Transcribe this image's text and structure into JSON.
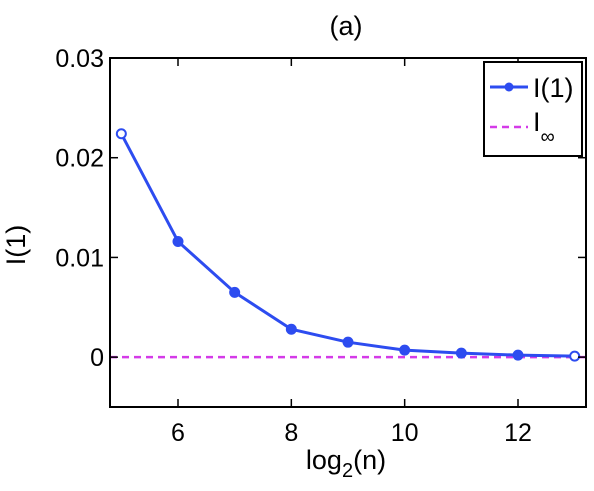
{
  "chart_data": {
    "type": "line",
    "title": "(a)",
    "xlabel": "log",
    "xlabel_sub": "2",
    "xlabel_tail": "(n)",
    "ylabel": "I(1)",
    "xlim": [
      4.8,
      13.2
    ],
    "ylim": [
      -0.005,
      0.03
    ],
    "xticks": [
      6,
      8,
      10,
      12
    ],
    "xtick_labels": [
      "6",
      "8",
      "10",
      "12"
    ],
    "yticks": [
      0,
      0.01,
      0.02,
      0.03
    ],
    "ytick_labels": [
      "0",
      "0.01",
      "0.02",
      "0.03"
    ],
    "grid": false,
    "legend_position": "top-right",
    "legend": {
      "series_label": "I(1)",
      "ref_label": "I",
      "ref_sub": "∞"
    },
    "colors": {
      "series": "#2d4cf0",
      "reference": "#d43be8"
    },
    "series": [
      {
        "x": [
          5,
          6,
          7,
          8,
          9,
          10,
          11,
          12,
          13
        ],
        "values": [
          0.0224,
          0.0116,
          0.0065,
          0.0028,
          0.0015,
          0.0007,
          0.0004,
          0.0002,
          0.0001
        ]
      }
    ],
    "reference_line": {
      "y": 0
    }
  }
}
